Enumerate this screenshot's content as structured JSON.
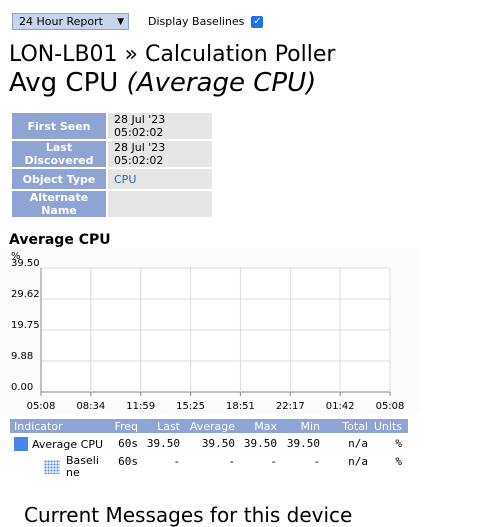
{
  "toolbar": {
    "report_select": "24 Hour Report",
    "display_baselines_label": "Display Baselines",
    "display_baselines_checked": true
  },
  "header": {
    "device_title": "LON-LB01 » Calculation Poller",
    "metric_name": "Avg CPU",
    "metric_full": "(Average CPU)"
  },
  "info": {
    "first_seen_label": "First Seen",
    "first_seen_value": "28 Jul '23 05:02:02",
    "last_discovered_label": "Last Discovered",
    "last_discovered_value": "28 Jul '23 05:02:02",
    "object_type_label": "Object Type",
    "object_type_value": "CPU",
    "alternate_name_label": "Alternate Name",
    "alternate_name_value": ""
  },
  "chart_title": "Average CPU",
  "chart_data": {
    "type": "line",
    "title": "Average CPU",
    "ylabel": "%",
    "ylim": [
      0,
      39.5
    ],
    "y_ticks": [
      "0.00",
      "9.88",
      "19.75",
      "29.62",
      "39.50"
    ],
    "x_ticks": [
      "05:08",
      "08:34",
      "11:59",
      "15:25",
      "18:51",
      "22:17",
      "01:42",
      "05:08"
    ],
    "grid": true,
    "series": []
  },
  "legend": {
    "headers": [
      "Indicator",
      "Freq",
      "Last",
      "Average",
      "Max",
      "Min",
      "Total",
      "Units"
    ],
    "rows": [
      {
        "name": "Average CPU",
        "freq": "60s",
        "last": "39.50",
        "average": "39.50",
        "max": "39.50",
        "min": "39.50",
        "total": "n/a",
        "units": "%"
      },
      {
        "name": "Baseline",
        "name_l1": "Baseli",
        "name_l2": "ne",
        "freq": "60s",
        "last": "-",
        "average": "-",
        "max": "-",
        "min": "-",
        "total": "n/a",
        "units": "%"
      }
    ],
    "colors": {
      "series": "#4a86e8",
      "header_bg": "#8fa4d4"
    }
  },
  "messages_title": "Current Messages for this device"
}
